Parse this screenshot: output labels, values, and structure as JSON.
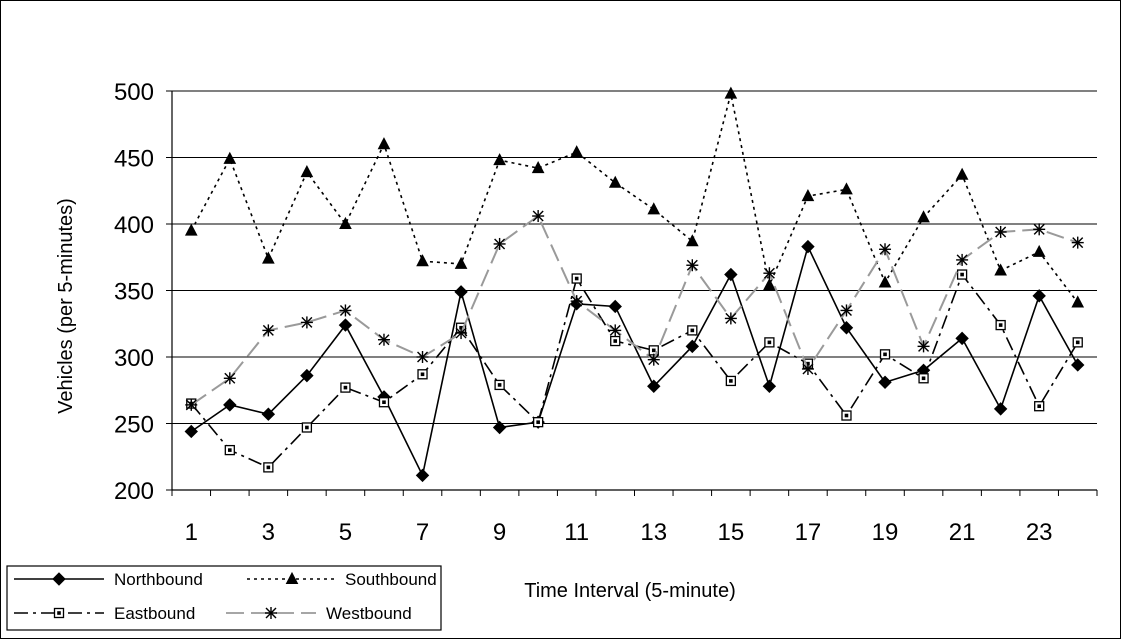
{
  "chart_data": {
    "type": "line",
    "title": "",
    "xlabel": "Time Interval (5-minute)",
    "ylabel": "Vehicles (per 5-minutes)",
    "ylim": [
      200,
      500
    ],
    "yticks": [
      "200",
      "250",
      "300",
      "350",
      "400",
      "450",
      "500"
    ],
    "x": [
      1,
      2,
      3,
      4,
      5,
      6,
      7,
      8,
      9,
      10,
      11,
      12,
      13,
      14,
      15,
      16,
      17,
      18,
      19,
      20,
      21,
      22,
      23,
      24
    ],
    "xtick_labels": [
      "1",
      "3",
      "5",
      "7",
      "9",
      "11",
      "13",
      "15",
      "17",
      "19",
      "21",
      "23"
    ],
    "grid": "horizontal",
    "legend_position": "bottom-left",
    "series": [
      {
        "name": "Northbound",
        "values": [
          244,
          264,
          257,
          286,
          324,
          270,
          211,
          349,
          247,
          251,
          340,
          338,
          278,
          308,
          362,
          278,
          383,
          322,
          281,
          290,
          314,
          261,
          346,
          294
        ]
      },
      {
        "name": "Southbound",
        "values": [
          395,
          449,
          374,
          439,
          400,
          460,
          372,
          370,
          448,
          442,
          454,
          431,
          411,
          387,
          498,
          354,
          421,
          426,
          356,
          405,
          437,
          365,
          379,
          341
        ]
      },
      {
        "name": "Eastbound",
        "values": [
          265,
          230,
          217,
          247,
          277,
          266,
          287,
          322,
          279,
          251,
          359,
          312,
          305,
          320,
          282,
          311,
          295,
          256,
          302,
          284,
          362,
          324,
          263,
          311
        ]
      },
      {
        "name": "Westbound",
        "values": [
          264,
          284,
          320,
          326,
          335,
          313,
          300,
          318,
          385,
          406,
          342,
          320,
          298,
          369,
          329,
          363,
          291,
          335,
          381,
          308,
          373,
          394,
          396,
          386
        ]
      }
    ],
    "colors": {
      "Northbound": "#000000",
      "Southbound": "#000000",
      "Eastbound": "#000000",
      "Westbound": "#9a9a9a"
    }
  }
}
